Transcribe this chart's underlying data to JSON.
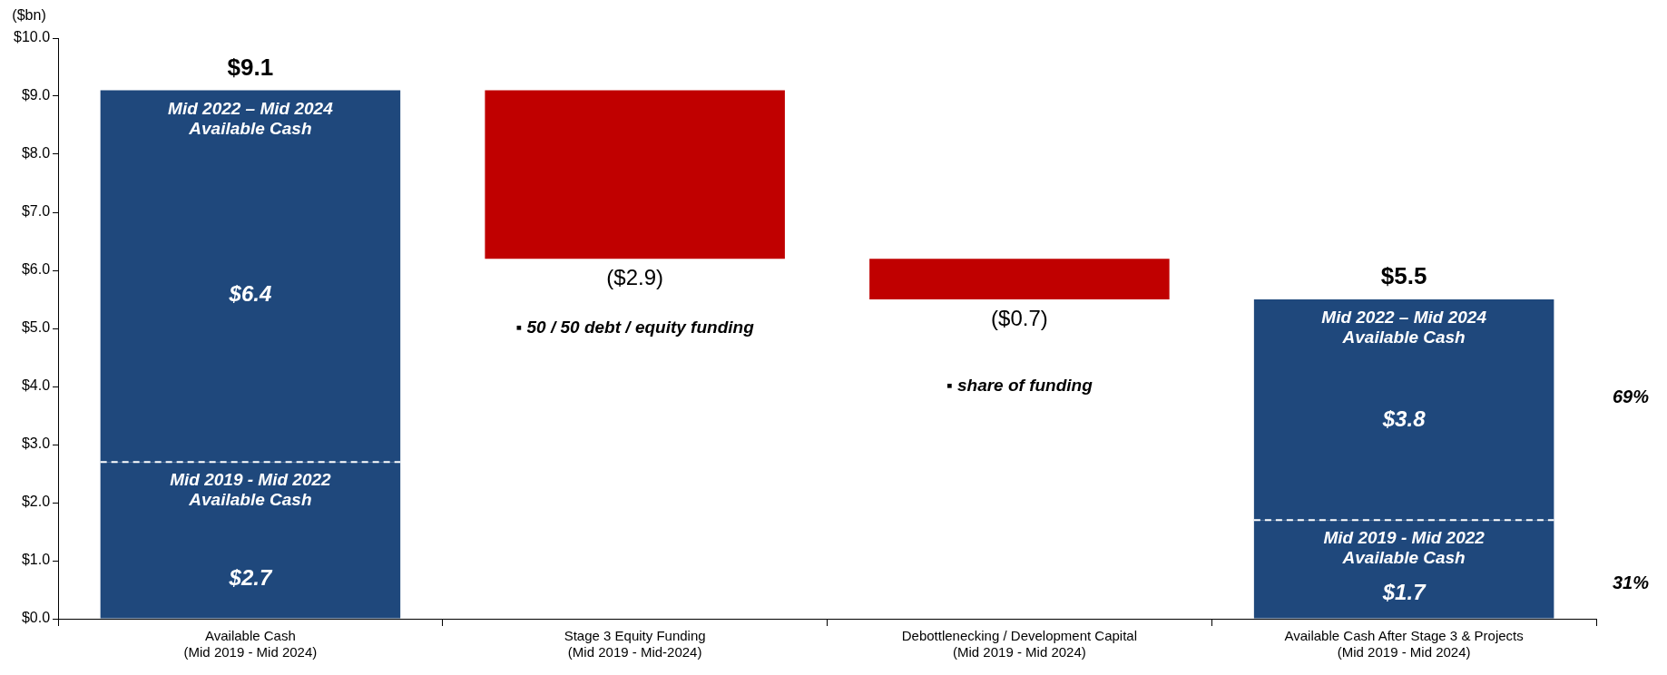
{
  "chart_data": {
    "type": "bar",
    "stacked": true,
    "ylabel": "($bn)",
    "categories": [
      "Available Cash\n(Mid 2019 - Mid 2024)",
      "Stage 3 Equity Funding\n(Mid 2019 - Mid-2024)",
      "Debottlenecking / Development Capital\n(Mid 2019 - Mid 2024)",
      "Available Cash After Stage 3 & Projects\n(Mid 2019 - Mid 2024)"
    ],
    "series": [
      {
        "color": "#1f487c",
        "values": [
          2.7,
          null,
          null,
          1.7
        ],
        "value_labels": [
          "$2.7",
          null,
          null,
          "$1.7"
        ]
      },
      {
        "colors": [
          "#1f487c",
          "#c00000",
          "#c00000",
          "#1f487c"
        ],
        "values": [
          6.4,
          -2.9,
          -0.7,
          3.8
        ],
        "base": [
          null,
          9.1,
          6.2,
          null
        ],
        "value_labels": [
          "$6.4",
          "($2.9)",
          "($0.7)",
          "$3.8"
        ]
      }
    ],
    "totals": [
      "$9.1",
      null,
      null,
      "$5.5"
    ],
    "ylim": [
      0,
      10
    ],
    "yticks": [
      {
        "value": 0,
        "label": "$0.0"
      },
      {
        "value": 1,
        "label": "$1.0"
      },
      {
        "value": 2,
        "label": "$2.0"
      },
      {
        "value": 3,
        "label": "$3.0"
      },
      {
        "value": 4,
        "label": "$4.0"
      },
      {
        "value": 5,
        "label": "$5.0"
      },
      {
        "value": 6,
        "label": "$6.0"
      },
      {
        "value": 7,
        "label": "$7.0"
      },
      {
        "value": 8,
        "label": "$8.0"
      },
      {
        "value": 9,
        "label": "$9.0"
      },
      {
        "value": 10,
        "label": "$10.0"
      }
    ],
    "grid": false,
    "legend": false,
    "annotations": [
      "Mid 2022 – Mid 2024\nAvailable Cash",
      "Mid 2019 - Mid 2022\nAvailable Cash",
      "Mid 2022 – Mid 2024\nAvailable Cash",
      "Mid 2019 - Mid 2022\nAvailable Cash",
      "▪ 50 / 50 debt / equity funding",
      "▪ share of funding",
      "69%",
      "31%"
    ]
  }
}
